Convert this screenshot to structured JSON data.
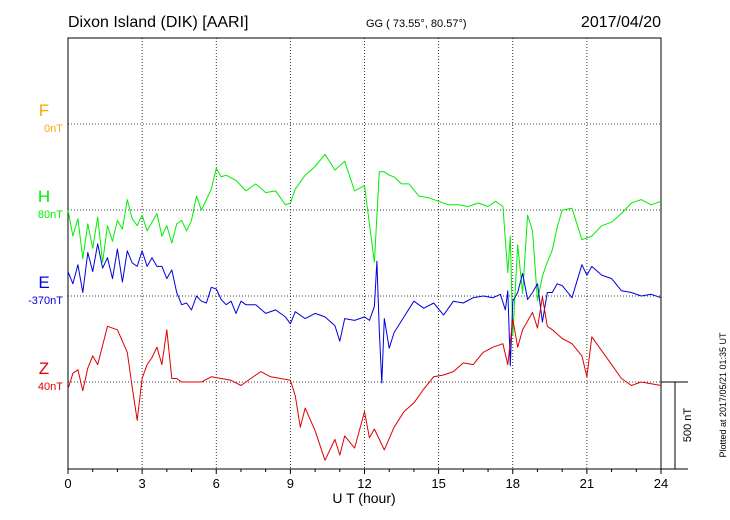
{
  "header": {
    "station": "Dixon Island (DIK)  [AARI]",
    "coords": "GG ( 73.55°,  80.57°)",
    "date": "2017/04/20"
  },
  "plotted_note": "Plotted at 2017/05/21 01:35 UT",
  "scale_label": "500 nT",
  "colors": {
    "F": "#ffa500",
    "H": "#00ee00",
    "E": "#0000dd",
    "Z": "#dd0000",
    "axis": "#000000"
  },
  "chart_data": {
    "type": "line",
    "xlabel": "U T (hour)",
    "xlim": [
      0,
      24
    ],
    "xticks": [
      "0",
      "3",
      "6",
      "9",
      "12",
      "15",
      "18",
      "21",
      "24"
    ],
    "grid": true,
    "scale_bar_nT": 500,
    "series": [
      {
        "name": "F",
        "baseline_label": "0nT",
        "color": "#ffa500",
        "x": [],
        "y": []
      },
      {
        "name": "H",
        "baseline_label": "80nT",
        "color": "#00ee00",
        "x": [
          0,
          0.2,
          0.4,
          0.6,
          0.8,
          1.0,
          1.2,
          1.4,
          1.6,
          1.8,
          2.0,
          2.2,
          2.4,
          2.6,
          2.8,
          3.0,
          3.2,
          3.4,
          3.6,
          3.8,
          4.0,
          4.2,
          4.4,
          4.6,
          4.8,
          5.0,
          5.2,
          5.4,
          5.6,
          5.8,
          6.0,
          6.2,
          6.4,
          6.8,
          7.2,
          7.6,
          8.0,
          8.4,
          8.8,
          9.0,
          9.2,
          9.6,
          10.0,
          10.4,
          10.8,
          11.2,
          11.6,
          12.0,
          12.2,
          12.4,
          12.6,
          12.8,
          13.0,
          13.2,
          13.5,
          13.8,
          14.2,
          14.6,
          15.0,
          15.4,
          15.8,
          16.2,
          16.6,
          17.0,
          17.3,
          17.6,
          17.8,
          17.9,
          18.0,
          18.2,
          18.4,
          18.6,
          18.8,
          19.0,
          19.2,
          19.4,
          19.6,
          19.8,
          20.0,
          20.4,
          20.8,
          21.2,
          21.6,
          22.0,
          22.4,
          22.8,
          23.2,
          23.6,
          24.0
        ],
        "y": [
          0,
          -150,
          -50,
          -280,
          -80,
          -220,
          -40,
          -300,
          -90,
          -180,
          -60,
          -110,
          60,
          -50,
          -90,
          -30,
          -120,
          -70,
          -20,
          -150,
          -90,
          -190,
          -80,
          -60,
          -120,
          -60,
          80,
          0,
          60,
          120,
          240,
          190,
          200,
          170,
          110,
          150,
          100,
          110,
          30,
          40,
          120,
          200,
          250,
          320,
          230,
          280,
          110,
          140,
          -80,
          -300,
          220,
          220,
          200,
          190,
          150,
          150,
          80,
          70,
          50,
          30,
          30,
          20,
          40,
          20,
          50,
          20,
          -360,
          -150,
          -720,
          -200,
          -480,
          -30,
          -120,
          -520,
          -380,
          -300,
          -230,
          -100,
          0,
          10,
          -170,
          -150,
          -90,
          -70,
          -20,
          40,
          60,
          30,
          50
        ]
      },
      {
        "name": "E",
        "baseline_label": "-370nT",
        "color": "#0000dd",
        "x": [
          0,
          0.2,
          0.4,
          0.6,
          0.8,
          1.0,
          1.2,
          1.4,
          1.6,
          1.8,
          2.0,
          2.2,
          2.4,
          2.6,
          2.8,
          3.0,
          3.2,
          3.4,
          3.6,
          3.8,
          4.0,
          4.2,
          4.4,
          4.6,
          4.8,
          5.0,
          5.2,
          5.4,
          5.6,
          5.8,
          6.0,
          6.2,
          6.4,
          6.6,
          6.8,
          7.0,
          7.2,
          7.6,
          8.0,
          8.4,
          8.8,
          9.0,
          9.2,
          9.6,
          10.0,
          10.4,
          10.8,
          11.0,
          11.2,
          11.6,
          12.0,
          12.2,
          12.4,
          12.5,
          12.6,
          12.7,
          12.8,
          13.0,
          13.2,
          13.6,
          14.0,
          14.4,
          14.8,
          15.2,
          15.6,
          16.0,
          16.4,
          16.8,
          17.2,
          17.5,
          17.7,
          17.8,
          17.9,
          18.0,
          18.2,
          18.4,
          18.6,
          18.8,
          19.0,
          19.2,
          19.4,
          19.6,
          19.8,
          20.0,
          20.4,
          20.8,
          21.0,
          21.2,
          21.6,
          22.0,
          22.4,
          22.8,
          23.2,
          23.6,
          24.0
        ],
        "y": [
          140,
          70,
          180,
          20,
          250,
          140,
          300,
          160,
          220,
          100,
          270,
          80,
          260,
          190,
          170,
          260,
          170,
          220,
          170,
          170,
          100,
          150,
          20,
          -50,
          -40,
          -80,
          0,
          -30,
          -40,
          50,
          40,
          -20,
          -50,
          -30,
          -100,
          -30,
          -50,
          -50,
          -100,
          -80,
          -120,
          -160,
          -90,
          -130,
          -100,
          -120,
          -170,
          -260,
          -130,
          -140,
          -120,
          -140,
          -60,
          200,
          -200,
          -500,
          -130,
          -300,
          -210,
          -120,
          -30,
          -70,
          -40,
          -110,
          -30,
          -40,
          -10,
          0,
          -10,
          10,
          -80,
          30,
          -400,
          -30,
          20,
          130,
          -20,
          20,
          70,
          -150,
          20,
          20,
          70,
          60,
          -10,
          180,
          120,
          170,
          120,
          100,
          30,
          20,
          0,
          10,
          -10
        ]
      },
      {
        "name": "Z",
        "baseline_label": "40nT",
        "color": "#dd0000",
        "x": [
          0,
          0.2,
          0.4,
          0.6,
          0.8,
          1.0,
          1.2,
          1.6,
          2.0,
          2.4,
          2.6,
          2.8,
          3.0,
          3.2,
          3.4,
          3.6,
          3.8,
          4.0,
          4.2,
          4.4,
          4.6,
          4.8,
          5.0,
          5.4,
          5.8,
          6.2,
          6.6,
          7.0,
          7.4,
          7.8,
          8.2,
          8.6,
          9.0,
          9.2,
          9.4,
          9.6,
          10.0,
          10.4,
          10.8,
          11.0,
          11.2,
          11.6,
          12.0,
          12.2,
          12.4,
          12.8,
          13.2,
          13.6,
          14.0,
          14.4,
          14.8,
          15.2,
          15.6,
          16.0,
          16.4,
          16.8,
          17.2,
          17.6,
          17.8,
          18.0,
          18.2,
          18.4,
          18.8,
          19.0,
          19.2,
          19.4,
          19.6,
          20.0,
          20.4,
          20.8,
          21.0,
          21.2,
          21.6,
          22.0,
          22.4,
          22.8,
          23.2,
          23.6,
          24.0
        ],
        "y": [
          -40,
          50,
          70,
          -50,
          80,
          150,
          100,
          320,
          300,
          170,
          -30,
          -220,
          20,
          100,
          140,
          200,
          100,
          300,
          20,
          20,
          0,
          0,
          0,
          0,
          30,
          20,
          10,
          -20,
          20,
          60,
          30,
          20,
          10,
          -80,
          -260,
          -150,
          -280,
          -450,
          -330,
          -420,
          -310,
          -380,
          -170,
          -320,
          -270,
          -390,
          -260,
          -170,
          -120,
          -40,
          30,
          40,
          60,
          110,
          100,
          170,
          200,
          220,
          100,
          360,
          200,
          300,
          400,
          310,
          490,
          320,
          300,
          250,
          220,
          150,
          30,
          260,
          180,
          100,
          20,
          -20,
          0,
          -10,
          -20
        ]
      }
    ]
  }
}
